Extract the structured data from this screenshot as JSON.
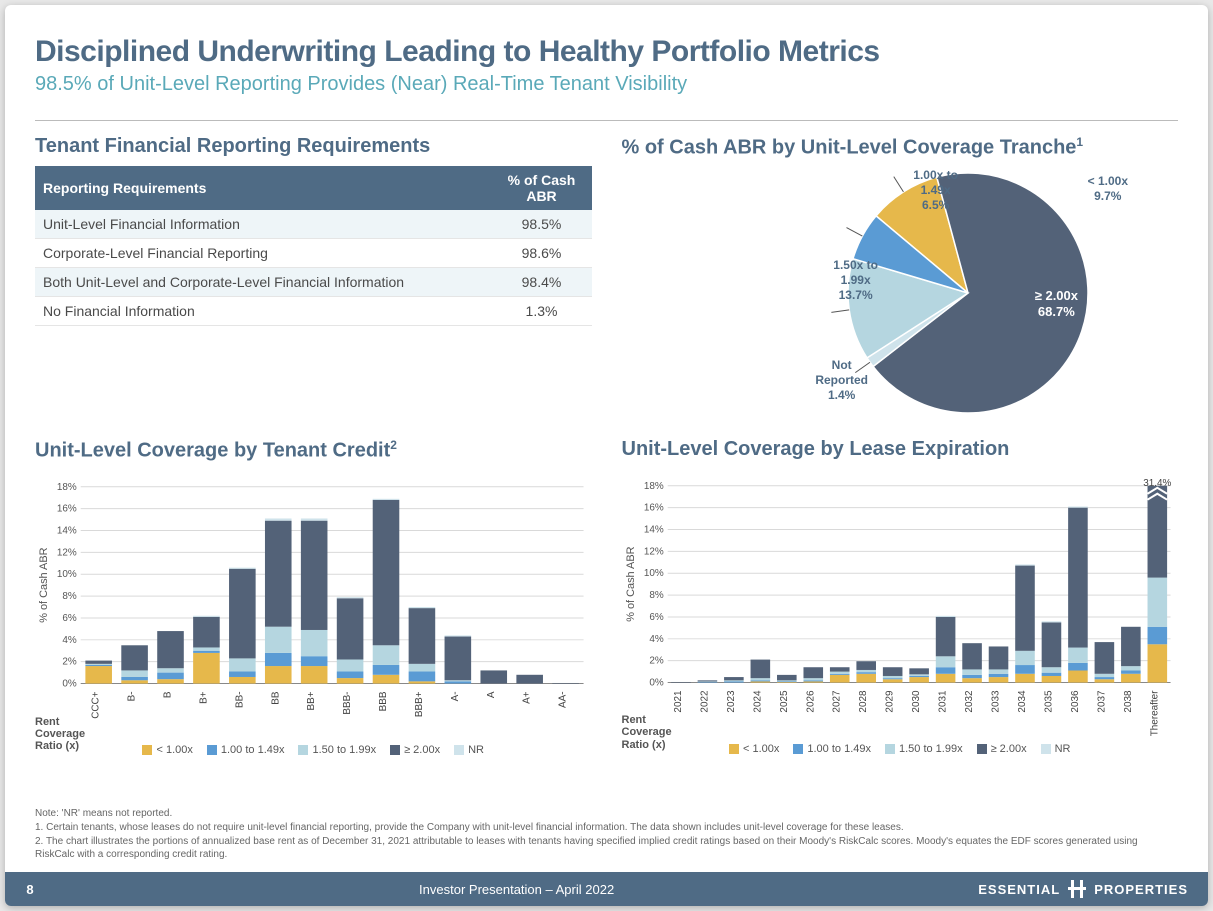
{
  "title": "Disciplined Underwriting Leading to Healthy Portfolio Metrics",
  "subtitle": "98.5% of Unit-Level Reporting Provides (Near) Real-Time Tenant Visibility",
  "colors": {
    "brand_slate": "#4f6b85",
    "brand_teal": "#5aa9b8",
    "series": {
      "lt1": "#e6b84b",
      "r1_15": "#5a9bd4",
      "r15_2": "#b5d6e0",
      "ge2": "#536278",
      "nr": "#cfe3eb"
    },
    "grid": "#d9d9d9",
    "background": "#ffffff",
    "pie_stroke": "#ffffff"
  },
  "typography": {
    "title_pt": 30,
    "subtitle_pt": 20,
    "section_pt": 20,
    "axis_pt": 10,
    "table_pt": 14
  },
  "table": {
    "title": "Tenant Financial Reporting Requirements",
    "columns": [
      "Reporting Requirements",
      "% of Cash ABR"
    ],
    "rows": [
      [
        "Unit-Level Financial Information",
        "98.5%"
      ],
      [
        "Corporate-Level Financial Reporting",
        "98.6%"
      ],
      [
        "Both Unit-Level and Corporate-Level Financial Information",
        "98.4%"
      ],
      [
        "No Financial Information",
        "1.3%"
      ]
    ]
  },
  "pie": {
    "title": "% of Cash ABR by Unit-Level Coverage Tranche",
    "title_sup": "1",
    "radius": 120,
    "slices": [
      {
        "key": "ge2",
        "label": "≥ 2.00x",
        "pct": 68.7,
        "label_text": "≥ 2.00x\n68.7%",
        "color": "#536278",
        "label_inside": true
      },
      {
        "key": "r15_2",
        "label": "1.50x to 1.99x",
        "pct": 13.7,
        "label_text": "1.50x to\n1.99x\n13.7%",
        "color": "#b5d6e0"
      },
      {
        "key": "r1_15",
        "label": "1.00x to 1.49x",
        "pct": 6.5,
        "label_text": "1.00x to\n1.49x\n6.5%",
        "color": "#5a9bd4"
      },
      {
        "key": "lt1",
        "label": "< 1.00x",
        "pct": 9.7,
        "label_text": "< 1.00x\n9.7%",
        "color": "#e6b84b"
      },
      {
        "key": "nr",
        "label": "Not Reported",
        "pct": 1.4,
        "label_text": "Not\nReported\n1.4%",
        "color": "#cfe3eb"
      }
    ]
  },
  "legend": {
    "items": [
      {
        "key": "lt1",
        "label": "< 1.00x"
      },
      {
        "key": "r1_15",
        "label": "1.00 to 1.49x"
      },
      {
        "key": "r15_2",
        "label": "1.50 to 1.99x"
      },
      {
        "key": "ge2",
        "label": "≥ 2.00x"
      },
      {
        "key": "nr",
        "label": "NR"
      }
    ],
    "sublabel": "Rent\nCoverage\nRatio (x)"
  },
  "credit_chart": {
    "title": "Unit-Level Coverage by Tenant Credit",
    "title_sup": "2",
    "ylabel": "% of Cash ABR",
    "ylim": [
      0,
      18
    ],
    "ytick_step": 2,
    "categories": [
      "CCC+",
      "B-",
      "B",
      "B+",
      "BB-",
      "BB",
      "BB+",
      "BBB-",
      "BBB",
      "BBB+",
      "A-",
      "A",
      "A+",
      "AA-"
    ],
    "series_order": [
      "lt1",
      "r1_15",
      "r15_2",
      "ge2",
      "nr"
    ],
    "data": [
      {
        "lt1": 1.6,
        "r1_15": 0.1,
        "r15_2": 0.1,
        "ge2": 0.3,
        "nr": 0.0
      },
      {
        "lt1": 0.3,
        "r1_15": 0.3,
        "r15_2": 0.6,
        "ge2": 2.3,
        "nr": 0.0
      },
      {
        "lt1": 0.4,
        "r1_15": 0.6,
        "r15_2": 0.4,
        "ge2": 3.4,
        "nr": 0.0
      },
      {
        "lt1": 2.8,
        "r1_15": 0.2,
        "r15_2": 0.3,
        "ge2": 2.8,
        "nr": 0.1
      },
      {
        "lt1": 0.6,
        "r1_15": 0.5,
        "r15_2": 1.2,
        "ge2": 8.2,
        "nr": 0.1
      },
      {
        "lt1": 1.6,
        "r1_15": 1.2,
        "r15_2": 2.4,
        "ge2": 9.7,
        "nr": 0.2
      },
      {
        "lt1": 1.6,
        "r1_15": 0.9,
        "r15_2": 2.4,
        "ge2": 10.0,
        "nr": 0.2
      },
      {
        "lt1": 0.5,
        "r1_15": 0.6,
        "r15_2": 1.1,
        "ge2": 5.6,
        "nr": 0.1
      },
      {
        "lt1": 0.8,
        "r1_15": 0.9,
        "r15_2": 1.8,
        "ge2": 13.3,
        "nr": 0.1
      },
      {
        "lt1": 0.2,
        "r1_15": 0.9,
        "r15_2": 0.7,
        "ge2": 5.1,
        "nr": 0.1
      },
      {
        "lt1": 0.0,
        "r1_15": 0.2,
        "r15_2": 0.1,
        "ge2": 4.0,
        "nr": 0.1
      },
      {
        "lt1": 0.0,
        "r1_15": 0.0,
        "r15_2": 0.0,
        "ge2": 1.2,
        "nr": 0.0
      },
      {
        "lt1": 0.0,
        "r1_15": 0.0,
        "r15_2": 0.0,
        "ge2": 0.8,
        "nr": 0.0
      },
      {
        "lt1": 0.0,
        "r1_15": 0.0,
        "r15_2": 0.0,
        "ge2": 0.05,
        "nr": 0.0
      }
    ],
    "bar_width": 0.74
  },
  "lease_chart": {
    "title": "Unit-Level Coverage by Lease Expiration",
    "ylabel": "% of Cash ABR",
    "ylim": [
      0,
      18
    ],
    "ytick_step": 2,
    "categories": [
      "2021",
      "2022",
      "2023",
      "2024",
      "2025",
      "2026",
      "2027",
      "2028",
      "2029",
      "2030",
      "2031",
      "2032",
      "2033",
      "2034",
      "2035",
      "2036",
      "2037",
      "2038",
      "Thereafter"
    ],
    "series_order": [
      "lt1",
      "r1_15",
      "r15_2",
      "ge2",
      "nr"
    ],
    "data": [
      {
        "lt1": 0.0,
        "r1_15": 0.0,
        "r15_2": 0.0,
        "ge2": 0.05,
        "nr": 0.0
      },
      {
        "lt1": 0.0,
        "r1_15": 0.05,
        "r15_2": 0.05,
        "ge2": 0.1,
        "nr": 0.0
      },
      {
        "lt1": 0.0,
        "r1_15": 0.1,
        "r15_2": 0.1,
        "ge2": 0.3,
        "nr": 0.0
      },
      {
        "lt1": 0.1,
        "r1_15": 0.1,
        "r15_2": 0.2,
        "ge2": 1.7,
        "nr": 0.0
      },
      {
        "lt1": 0.05,
        "r1_15": 0.05,
        "r15_2": 0.1,
        "ge2": 0.5,
        "nr": 0.0
      },
      {
        "lt1": 0.1,
        "r1_15": 0.1,
        "r15_2": 0.2,
        "ge2": 1.0,
        "nr": 0.0
      },
      {
        "lt1": 0.7,
        "r1_15": 0.1,
        "r15_2": 0.2,
        "ge2": 0.4,
        "nr": 0.0
      },
      {
        "lt1": 0.8,
        "r1_15": 0.15,
        "r15_2": 0.2,
        "ge2": 0.8,
        "nr": 0.0
      },
      {
        "lt1": 0.3,
        "r1_15": 0.1,
        "r15_2": 0.2,
        "ge2": 0.8,
        "nr": 0.0
      },
      {
        "lt1": 0.5,
        "r1_15": 0.1,
        "r15_2": 0.15,
        "ge2": 0.55,
        "nr": 0.0
      },
      {
        "lt1": 0.8,
        "r1_15": 0.6,
        "r15_2": 1.0,
        "ge2": 3.6,
        "nr": 0.1
      },
      {
        "lt1": 0.4,
        "r1_15": 0.3,
        "r15_2": 0.5,
        "ge2": 2.4,
        "nr": 0.0
      },
      {
        "lt1": 0.5,
        "r1_15": 0.3,
        "r15_2": 0.4,
        "ge2": 2.1,
        "nr": 0.0
      },
      {
        "lt1": 0.8,
        "r1_15": 0.8,
        "r15_2": 1.3,
        "ge2": 7.8,
        "nr": 0.1
      },
      {
        "lt1": 0.6,
        "r1_15": 0.3,
        "r15_2": 0.5,
        "ge2": 4.1,
        "nr": 0.1
      },
      {
        "lt1": 1.1,
        "r1_15": 0.7,
        "r15_2": 1.4,
        "ge2": 12.8,
        "nr": 0.1
      },
      {
        "lt1": 0.3,
        "r1_15": 0.2,
        "r15_2": 0.3,
        "ge2": 2.9,
        "nr": 0.0
      },
      {
        "lt1": 0.8,
        "r1_15": 0.3,
        "r15_2": 0.4,
        "ge2": 3.6,
        "nr": 0.0
      },
      {
        "lt1": 3.5,
        "r1_15": 1.6,
        "r15_2": 4.5,
        "ge2": 21.3,
        "nr": 0.5
      }
    ],
    "overflow": {
      "index": 18,
      "total": 31.4,
      "label": "31.4%"
    },
    "bar_width": 0.74
  },
  "footnotes": {
    "note": "Note: 'NR' means not reported.",
    "n1": "1. Certain tenants, whose leases do not require unit-level financial reporting, provide the Company with unit-level financial information. The data shown includes unit-level coverage for these leases.",
    "n2": "2. The chart illustrates the portions of annualized base rent as of December 31, 2021 attributable to leases with tenants having specified implied credit ratings based on their Moody's RiskCalc scores. Moody's equates the EDF scores generated using RiskCalc with a corresponding credit rating."
  },
  "footer": {
    "page": "8",
    "center": "Investor Presentation – April 2022",
    "logo_left": "ESSENTIAL",
    "logo_right": "PROPERTIES"
  }
}
